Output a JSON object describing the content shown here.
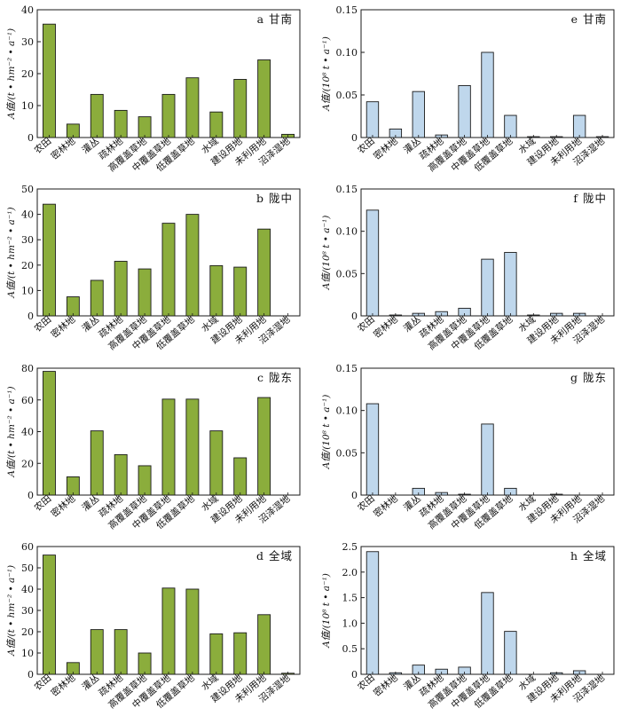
{
  "categories": [
    "农田",
    "密林地",
    "灌丛",
    "疏林地",
    "高覆盖草地",
    "中覆盖草地",
    "低覆盖草地",
    "水域",
    "建设用地",
    "未利用地",
    "沼泽湿地"
  ],
  "colors": {
    "green": "#8bad3c",
    "blue": "#bfd7ec",
    "stroke": "#1a1a1a"
  },
  "chart_data": [
    {
      "id": "a",
      "type": "bar",
      "title": "a 甘南",
      "ylabel": "A值/(t • hm⁻² • a⁻¹)",
      "ylim": [
        0,
        40
      ],
      "yticks": [
        "0",
        "10",
        "20",
        "30",
        "40"
      ],
      "values": [
        35.5,
        4.2,
        13.5,
        8.5,
        6.5,
        13.5,
        18.7,
        8.0,
        18.2,
        24.3,
        1.0
      ]
    },
    {
      "id": "e",
      "type": "bar",
      "title": "e 甘南",
      "ylabel": "A值/(10⁸ t • a⁻¹)",
      "ylim": [
        0,
        0.15
      ],
      "yticks": [
        "0",
        "0.05",
        "0.10",
        "0.15"
      ],
      "values": [
        0.042,
        0.01,
        0.054,
        0.003,
        0.061,
        0.1,
        0.026,
        0.001,
        0.001,
        0.026,
        0.001
      ]
    },
    {
      "id": "b",
      "type": "bar",
      "title": "b 陇中",
      "ylabel": "A值/(t • hm⁻² • a⁻¹)",
      "ylim": [
        0,
        50
      ],
      "yticks": [
        "0",
        "10",
        "20",
        "30",
        "40",
        "50"
      ],
      "values": [
        44.0,
        7.5,
        14.0,
        21.5,
        18.5,
        36.5,
        40.0,
        19.8,
        19.2,
        34.2,
        0
      ]
    },
    {
      "id": "f",
      "type": "bar",
      "title": "f 陇中",
      "ylabel": "A值/(10⁸ t • a⁻¹)",
      "ylim": [
        0,
        0.15
      ],
      "yticks": [
        "0",
        "0.05",
        "0.10",
        "0.15"
      ],
      "values": [
        0.125,
        0.001,
        0.003,
        0.005,
        0.009,
        0.067,
        0.075,
        0.001,
        0.003,
        0.003,
        0
      ]
    },
    {
      "id": "c",
      "type": "bar",
      "title": "c 陇东",
      "ylabel": "A值/(t • hm⁻² • a⁻¹)",
      "ylim": [
        0,
        80
      ],
      "yticks": [
        "0",
        "20",
        "40",
        "60",
        "80"
      ],
      "values": [
        78.0,
        11.5,
        40.5,
        25.5,
        18.5,
        60.5,
        60.5,
        40.5,
        23.5,
        61.5,
        0
      ]
    },
    {
      "id": "g",
      "type": "bar",
      "title": "g 陇东",
      "ylabel": "A值/(10⁸ t • a⁻¹)",
      "ylim": [
        0,
        0.15
      ],
      "yticks": [
        "0",
        "0.05",
        "0.10",
        "0.15"
      ],
      "values": [
        0.108,
        0,
        0.008,
        0.003,
        0.001,
        0.084,
        0.008,
        0,
        0.001,
        0,
        0
      ]
    },
    {
      "id": "d",
      "type": "bar",
      "title": "d 全域",
      "ylabel": "A值/(t • hm⁻² • a⁻¹)",
      "ylim": [
        0,
        60
      ],
      "yticks": [
        "0",
        "10",
        "20",
        "30",
        "40",
        "50",
        "60"
      ],
      "values": [
        56.0,
        5.5,
        21.0,
        21.0,
        10.0,
        40.5,
        40.0,
        19.0,
        19.5,
        28.0,
        0.5
      ]
    },
    {
      "id": "h",
      "type": "bar",
      "title": "h 全域",
      "ylabel": "A值/(10⁸ t • a⁻¹)",
      "ylim": [
        0,
        2.5
      ],
      "yticks": [
        "0",
        "0.5",
        "1.0",
        "1.5",
        "2.0",
        "2.5"
      ],
      "values": [
        2.4,
        0.03,
        0.18,
        0.1,
        0.14,
        1.6,
        0.84,
        0,
        0.03,
        0.07,
        0
      ]
    }
  ]
}
